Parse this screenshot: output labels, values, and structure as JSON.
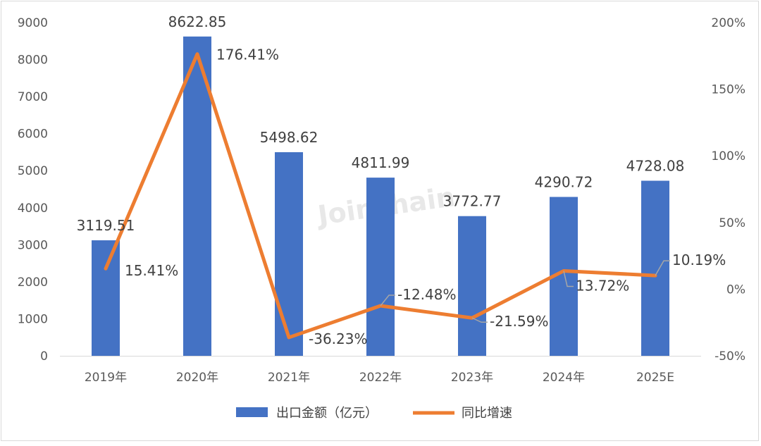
{
  "chart_data": {
    "type": "bar",
    "categories": [
      "2019年",
      "2020年",
      "2021年",
      "2022年",
      "2023年",
      "2024年",
      "2025E"
    ],
    "series": [
      {
        "name": "出口金额（亿元）",
        "type": "bar",
        "axis": "left",
        "color": "#4472c4",
        "values": [
          3119.51,
          8622.85,
          5498.62,
          4811.99,
          3772.77,
          4290.72,
          4728.08
        ],
        "labels": [
          "3119.51",
          "8622.85",
          "5498.62",
          "4811.99",
          "3772.77",
          "4290.72",
          "4728.08"
        ]
      },
      {
        "name": "同比增速",
        "type": "line",
        "axis": "right",
        "color": "#ed7d31",
        "values": [
          15.41,
          176.41,
          -36.23,
          -12.48,
          -21.59,
          13.72,
          10.19
        ],
        "labels": [
          "15.41%",
          "176.41%",
          "-36.23%",
          "-12.48%",
          "-21.59%",
          "13.72%",
          "10.19%"
        ]
      }
    ],
    "y_left": {
      "ylim": [
        0,
        9000
      ],
      "ticks": [
        "0",
        "1000",
        "2000",
        "3000",
        "4000",
        "5000",
        "6000",
        "7000",
        "8000",
        "9000"
      ]
    },
    "y_right": {
      "ylim": [
        -50,
        200
      ],
      "ticks": [
        "-50%",
        "0%",
        "50%",
        "100%",
        "150%",
        "200%"
      ]
    },
    "grid": false,
    "legend": "bottom",
    "watermark": "Joinchain"
  }
}
